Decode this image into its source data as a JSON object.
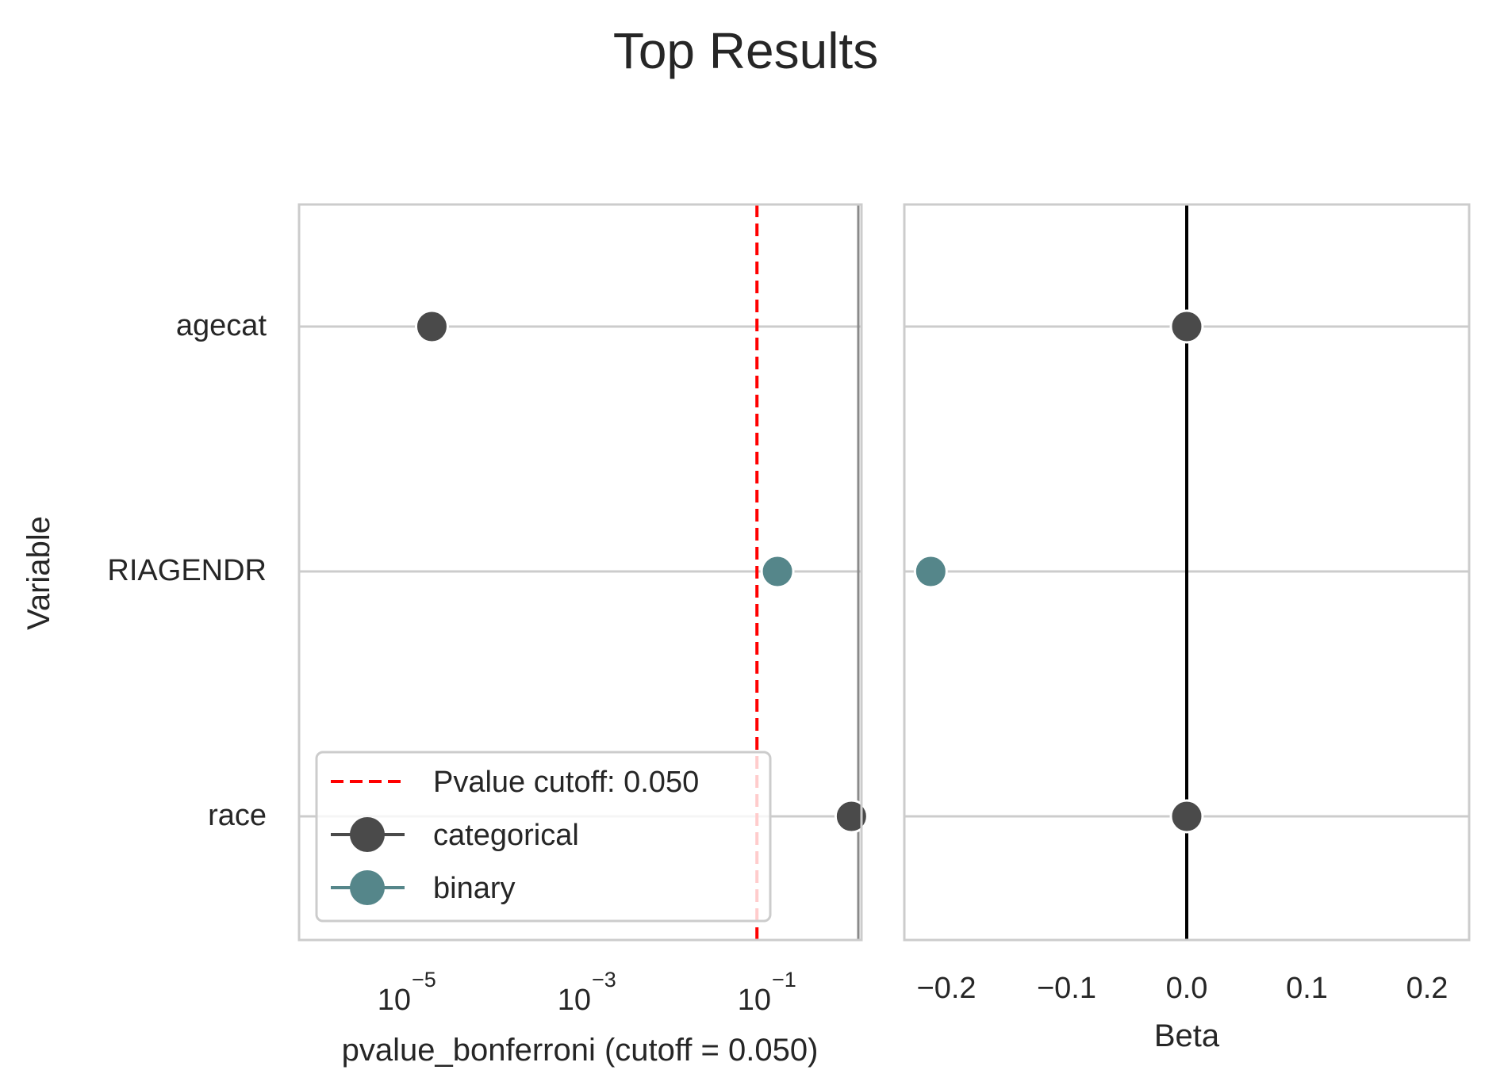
{
  "title": "Top Results",
  "ylabel": "Variable",
  "left_panel": {
    "xlabel": "pvalue_bonferroni (cutoff = 0.050)",
    "tick_base": "10",
    "tick_exponents": [
      "−5",
      "−3",
      "−1"
    ]
  },
  "right_panel": {
    "xlabel": "Beta",
    "tick_labels": [
      "−0.2",
      "−0.1",
      "0.0",
      "0.1",
      "0.2"
    ]
  },
  "legend": {
    "cutoff": "Pvalue cutoff: 0.050",
    "categorical": "categorical",
    "binary": "binary"
  },
  "colors": {
    "categorical": "#4a4a4a",
    "binary": "#55868a",
    "cutoff": "#ff0000",
    "grid": "#cccccc",
    "zero_line": "#000000"
  },
  "chart_data": [
    {
      "type": "scatter",
      "xscale": "log",
      "xlim": [
        1e-07,
        1.0
      ],
      "cutoff": 0.05,
      "categories": [
        "agecat",
        "RIAGENDR",
        "race"
      ],
      "series": [
        {
          "name": "categorical",
          "points": [
            {
              "y": "agecat",
              "x": 4.5e-06
            },
            {
              "y": "race",
              "x": 0.75
            }
          ]
        },
        {
          "name": "binary",
          "points": [
            {
              "y": "RIAGENDR",
              "x": 0.09
            }
          ]
        }
      ],
      "xlabel": "pvalue_bonferroni (cutoff = 0.050)",
      "ylabel": "Variable",
      "grid": true,
      "legend": "lower-left"
    },
    {
      "type": "scatter",
      "xlim": [
        -0.235,
        0.235
      ],
      "categories": [
        "agecat",
        "RIAGENDR",
        "race"
      ],
      "series": [
        {
          "name": "categorical",
          "points": [
            {
              "y": "agecat",
              "x": 0.0
            },
            {
              "y": "race",
              "x": 0.0
            }
          ]
        },
        {
          "name": "binary",
          "points": [
            {
              "y": "RIAGENDR",
              "x": -0.213
            }
          ]
        }
      ],
      "xlabel": "Beta",
      "grid": true
    }
  ]
}
